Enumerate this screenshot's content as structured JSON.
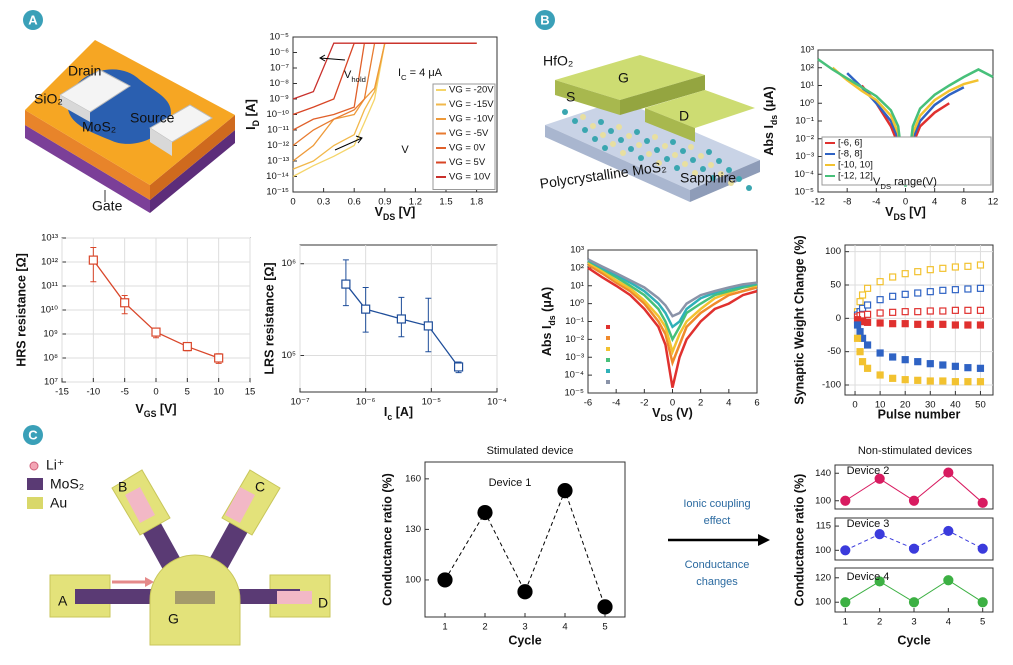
{
  "panels": {
    "a": "A",
    "b": "B",
    "c": "C"
  },
  "diagram_a": {
    "drain": "Drain",
    "sio2": "SiO₂",
    "mos2": "MoS₂",
    "source": "Source",
    "gate": "Gate"
  },
  "diagram_b": {
    "hfo2": "HfO₂",
    "g": "G",
    "s": "S",
    "d": "D",
    "sapphire": "Sapphire",
    "poly": "Polycrystalline MoS₂"
  },
  "diagram_c": {
    "legend": [
      "Li⁺",
      "MoS₂",
      "Au"
    ],
    "electrodes": {
      "a": "A",
      "b": "B",
      "c": "C",
      "d": "D",
      "g": "G"
    },
    "stimulated": "Stimulated device",
    "coupling": [
      "Ionic coupling",
      "effect"
    ],
    "changes": [
      "Conductance",
      "changes"
    ],
    "non_stimulated": "Non-stimulated devices",
    "nonstim_ylabel": "Conductance ratio (%)"
  },
  "chart_data": [
    {
      "type": "line",
      "xlabel": [
        "V",
        "DS",
        " [V]"
      ],
      "ylabel": [
        "I",
        "D",
        " [A]"
      ],
      "log_y": true,
      "xlim": [
        0,
        2
      ],
      "ylim": [
        1e-15,
        1e-05
      ],
      "xticks": [
        0,
        0.3,
        0.6,
        0.9,
        1.2,
        1.5,
        1.8
      ],
      "yticks": [
        {
          "value": 1e-15,
          "label": "10⁻¹⁵"
        },
        {
          "value": 1e-14,
          "label": "10⁻¹⁴"
        },
        {
          "value": 1e-13,
          "label": "10⁻¹³"
        },
        {
          "value": 1e-12,
          "label": "10⁻¹²"
        },
        {
          "value": 1e-11,
          "label": "10⁻¹¹"
        },
        {
          "value": 1e-10,
          "label": "10⁻¹⁰"
        },
        {
          "value": 1e-09,
          "label": "10⁻⁹"
        },
        {
          "value": 1e-08,
          "label": "10⁻⁸"
        },
        {
          "value": 1e-07,
          "label": "10⁻⁷"
        },
        {
          "value": 1e-06,
          "label": "10⁻⁶"
        },
        {
          "value": 1e-05,
          "label": "10⁻⁵"
        }
      ],
      "grid": false,
      "legend": "lower-right",
      "annotations": [
        [
          "V",
          "hold"
        ],
        [
          "I",
          "C",
          " = 4 μA"
        ],
        [
          "V"
        ]
      ],
      "x": [
        0,
        0.2,
        0.4,
        0.6,
        0.7,
        0.8,
        0.9,
        1.2,
        1.5,
        1.8
      ],
      "series": [
        {
          "name": "VG = -20V",
          "color": "#f5d56a",
          "values": [
            1e-14,
            5e-14,
            2e-13,
            1e-12,
            3e-11,
            1e-09,
            4e-06,
            4e-06,
            4e-06,
            4e-06
          ]
        },
        {
          "name": "VG = -15V",
          "color": "#f2b84b",
          "values": [
            3e-14,
            1e-13,
            1e-12,
            5e-12,
            2e-10,
            3e-09,
            4e-06,
            4e-06,
            4e-06,
            4e-06
          ]
        },
        {
          "name": "VG = -10V",
          "color": "#ee9a3a",
          "values": [
            1e-13,
            1e-12,
            5e-11,
            1e-10,
            1e-09,
            5e-09,
            4e-06,
            4e-06,
            4e-06,
            4e-06
          ]
        },
        {
          "name": "VG = -5V",
          "color": "#e87b30",
          "values": [
            1e-12,
            1e-11,
            5e-11,
            2e-10,
            1e-09,
            4e-06,
            4e-06,
            4e-06,
            4e-06,
            4e-06
          ]
        },
        {
          "name": "VG = 0V",
          "color": "#e0602a",
          "values": [
            1e-11,
            5e-11,
            1e-10,
            3e-10,
            4e-06,
            4e-06,
            4e-06,
            4e-06,
            4e-06,
            4e-06
          ]
        },
        {
          "name": "VG = 5V",
          "color": "#d84525",
          "values": [
            1e-10,
            3e-10,
            1e-09,
            4e-06,
            4e-06,
            4e-06,
            4e-06,
            4e-06,
            4e-06,
            4e-06
          ]
        },
        {
          "name": "VG = 10V",
          "color": "#c9302c",
          "values": [
            1e-09,
            3e-09,
            4e-06,
            4e-06,
            4e-06,
            4e-06,
            4e-06,
            4e-06,
            4e-06,
            4e-06
          ]
        }
      ]
    },
    {
      "type": "line",
      "xlabel": [
        "V",
        "DS",
        " [V]"
      ],
      "ylabel": [
        "Abs I",
        "ds",
        " (μA)"
      ],
      "log_y": true,
      "xlim": [
        -12,
        12
      ],
      "ylim": [
        1e-05,
        1000
      ],
      "xticks": [
        -12,
        -8,
        -4,
        0,
        4,
        8,
        12
      ],
      "yticks": [
        {
          "value": 1e-05,
          "label": "10⁻⁵"
        },
        {
          "value": 0.0001,
          "label": "10⁻⁴"
        },
        {
          "value": 0.001,
          "label": "10⁻³"
        },
        {
          "value": 0.01,
          "label": "10⁻²"
        },
        {
          "value": 0.1,
          "label": "10⁻¹"
        },
        {
          "value": 1,
          "label": "10⁰"
        },
        {
          "value": 10,
          "label": "10¹"
        },
        {
          "value": 100,
          "label": "10²"
        },
        {
          "value": 1000,
          "label": "10³"
        }
      ],
      "grid": false,
      "legend": "lower-left",
      "annotations": [
        [
          "V",
          "DS",
          " range(V)"
        ]
      ],
      "x": [
        -12,
        -10,
        -8,
        -6,
        -4,
        -2,
        -1,
        0,
        1,
        2,
        4,
        6,
        8,
        10,
        12
      ],
      "series": [
        {
          "name": "[-6, 6]",
          "color": "#e0312f",
          "values": [
            null,
            null,
            null,
            10,
            1,
            0.05,
            0.005,
            0.001,
            0.005,
            0.05,
            0.3,
            1,
            null,
            null,
            null
          ]
        },
        {
          "name": "[-8, 8]",
          "color": "#2f63c4",
          "values": [
            null,
            null,
            50,
            8,
            1,
            0.1,
            0.01,
            0.0005,
            0.01,
            0.1,
            0.8,
            3,
            8,
            null,
            null
          ]
        },
        {
          "name": "[-10, 10]",
          "color": "#f2c230",
          "values": [
            null,
            100,
            20,
            5,
            1.5,
            0.2,
            0.02,
            0.0001,
            0.02,
            0.2,
            1.5,
            5,
            12,
            20,
            null
          ]
        },
        {
          "name": "[-12, 12]",
          "color": "#47c07a",
          "values": [
            300,
            80,
            25,
            8,
            2.5,
            0.4,
            0.05,
            2e-05,
            0.05,
            0.5,
            3,
            10,
            30,
            80,
            30
          ]
        }
      ]
    },
    {
      "type": "line",
      "xlabel": [
        "V",
        "DS",
        " (V)"
      ],
      "ylabel": [
        "Abs I",
        "ds",
        " (μA)"
      ],
      "log_y": true,
      "xlim": [
        -6,
        6
      ],
      "ylim": [
        1e-05,
        1000
      ],
      "xticks": [
        -6,
        -4,
        -2,
        0,
        2,
        4,
        6
      ],
      "yticks": [
        {
          "value": 1e-05,
          "label": "10⁻⁵"
        },
        {
          "value": 0.0001,
          "label": "10⁻⁴"
        },
        {
          "value": 0.001,
          "label": "10⁻³"
        },
        {
          "value": 0.01,
          "label": "10⁻²"
        },
        {
          "value": 0.1,
          "label": "10⁻¹"
        },
        {
          "value": 1,
          "label": "10⁰"
        },
        {
          "value": 10,
          "label": "10¹"
        },
        {
          "value": 100,
          "label": "10²"
        },
        {
          "value": 1000,
          "label": "10³"
        }
      ],
      "grid": false,
      "legend": "left",
      "x": [
        -6,
        -5,
        -4,
        -3,
        -2,
        -1,
        -0.5,
        0,
        0.5,
        1,
        2,
        3,
        4,
        5,
        6
      ],
      "series": [
        {
          "color": "#e0312f",
          "values": [
            100,
            30,
            10,
            3,
            0.5,
            0.05,
            0.005,
            2e-05,
            0.001,
            0.01,
            0.1,
            0.5,
            1,
            3,
            5
          ]
        },
        {
          "color": "#f08a2c",
          "values": [
            150,
            50,
            15,
            5,
            1,
            0.1,
            0.02,
            0.0005,
            0.005,
            0.05,
            0.3,
            1,
            3,
            5,
            8
          ]
        },
        {
          "color": "#f2c230",
          "values": [
            200,
            70,
            20,
            7,
            1.5,
            0.2,
            0.05,
            0.002,
            0.02,
            0.1,
            0.5,
            2,
            4,
            8,
            10
          ]
        },
        {
          "color": "#47c07a",
          "values": [
            250,
            90,
            30,
            10,
            3,
            0.5,
            0.1,
            0.01,
            0.05,
            0.3,
            1,
            3,
            5,
            8,
            12
          ]
        },
        {
          "color": "#2fb1b8",
          "values": [
            280,
            100,
            40,
            15,
            5,
            1,
            0.3,
            0.05,
            0.1,
            0.5,
            2,
            4,
            7,
            10,
            14
          ]
        },
        {
          "color": "#8a93a8",
          "values": [
            300,
            120,
            50,
            20,
            8,
            2,
            0.8,
            0.2,
            0.3,
            1,
            3,
            5,
            8,
            12,
            15
          ]
        }
      ]
    },
    {
      "type": "line",
      "xlabel": "Pulse number",
      "ylabel": "Synaptic Weight Change (%)",
      "xlim": [
        -4,
        55
      ],
      "ylim": [
        -115,
        110
      ],
      "xticks": [
        0,
        10,
        20,
        30,
        40,
        50
      ],
      "yticks": [
        -100,
        -50,
        0,
        50,
        100
      ],
      "grid": true,
      "x": [
        1,
        2,
        3,
        5,
        10,
        15,
        20,
        25,
        30,
        35,
        40,
        45,
        50
      ],
      "series": [
        {
          "color": "#f2c230",
          "marker": "open-square",
          "values": [
            10,
            25,
            35,
            45,
            55,
            62,
            67,
            70,
            73,
            75,
            77,
            78,
            80
          ]
        },
        {
          "color": "#2f63c4",
          "marker": "open-square",
          "values": [
            5,
            10,
            15,
            20,
            28,
            33,
            36,
            38,
            40,
            42,
            43,
            44,
            45
          ]
        },
        {
          "color": "#e0312f",
          "marker": "open-square",
          "values": [
            2,
            4,
            5,
            6,
            8,
            9,
            10,
            10,
            11,
            11,
            12,
            12,
            12
          ]
        },
        {
          "color": "#e0312f",
          "marker": "square",
          "values": [
            -2,
            -4,
            -5,
            -6,
            -7,
            -8,
            -8,
            -9,
            -9,
            -9,
            -10,
            -10,
            -10
          ]
        },
        {
          "color": "#2f63c4",
          "marker": "square",
          "values": [
            -10,
            -20,
            -30,
            -40,
            -52,
            -58,
            -62,
            -65,
            -68,
            -70,
            -72,
            -74,
            -75
          ]
        },
        {
          "color": "#f2c230",
          "marker": "square",
          "values": [
            -30,
            -50,
            -65,
            -75,
            -85,
            -90,
            -92,
            -93,
            -94,
            -94,
            -95,
            -95,
            -95
          ]
        }
      ]
    },
    {
      "type": "line",
      "xlabel": [
        "V",
        "GS",
        " [V]"
      ],
      "ylabel": "HRS resistance [Ω]",
      "log_y": true,
      "xlim": [
        -15,
        15
      ],
      "ylim": [
        10000000.0,
        10000000000000.0
      ],
      "xticks": [
        -15,
        -10,
        -5,
        0,
        5,
        10,
        15
      ],
      "yticks": [
        {
          "value": 10000000.0,
          "label": "10⁷"
        },
        {
          "value": 100000000.0,
          "label": "10⁸"
        },
        {
          "value": 1000000000.0,
          "label": "10⁹"
        },
        {
          "value": 10000000000.0,
          "label": "10¹⁰"
        },
        {
          "value": 100000000000.0,
          "label": "10¹¹"
        },
        {
          "value": 1000000000000.0,
          "label": "10¹²"
        },
        {
          "value": 10000000000000.0,
          "label": "10¹³"
        }
      ],
      "grid": true,
      "x": [
        -10,
        -5,
        0,
        5,
        10
      ],
      "series": [
        {
          "color": "#d9472b",
          "marker": "open-square",
          "values": [
            1200000000000.0,
            20000000000.0,
            1200000000.0,
            300000000.0,
            100000000.0
          ],
          "ylow": [
            150000000000.0,
            7000000000.0,
            700000000.0,
            200000000.0,
            60000000.0
          ],
          "yhigh": [
            4000000000000.0,
            40000000000.0,
            1600000000.0,
            400000000.0,
            150000000.0
          ]
        }
      ]
    },
    {
      "type": "line",
      "xlabel": [
        "I",
        "c",
        " [A]"
      ],
      "ylabel": "LRS resistance [Ω]",
      "log_x": true,
      "log_y": true,
      "xlim": [
        1e-07,
        0.0001
      ],
      "ylim": [
        40000.0,
        1600000.0
      ],
      "xticks": [
        {
          "value": 1e-07,
          "label": "10⁻⁷"
        },
        {
          "value": 1e-06,
          "label": "10⁻⁶"
        },
        {
          "value": 1e-05,
          "label": "10⁻⁵"
        },
        {
          "value": 0.0001,
          "label": "10⁻⁴"
        }
      ],
      "yticks": [
        {
          "value": 100000.0,
          "label": "10⁵"
        },
        {
          "value": 1000000.0,
          "label": "10⁶"
        }
      ],
      "grid": true,
      "x": [
        5e-07,
        1e-06,
        3.5e-06,
        9e-06,
        2.6e-05
      ],
      "series": [
        {
          "color": "#1f4e9a",
          "marker": "open-square",
          "values": [
            600000.0,
            320000.0,
            250000.0,
            210000.0,
            75000.0
          ],
          "ylow": [
            350000.0,
            180000.0,
            160000.0,
            110000.0,
            65000.0
          ],
          "yhigh": [
            1100000.0,
            550000.0,
            430000.0,
            420000.0,
            85000.0
          ]
        }
      ]
    },
    {
      "type": "line",
      "xlabel": "Cycle",
      "ylabel": "Conductance ratio (%)",
      "xlim": [
        0.5,
        5.5
      ],
      "ylim": [
        78,
        170
      ],
      "xticks": [
        1,
        2,
        3,
        4,
        5
      ],
      "yticks": [
        100,
        130,
        160
      ],
      "grid": false,
      "annotations": [
        [
          "Device 1"
        ]
      ],
      "x": [
        1,
        2,
        3,
        4,
        5
      ],
      "series": [
        {
          "color": "#000000",
          "marker": "circle",
          "line": "dashed",
          "values": [
            100,
            140,
            93,
            153,
            84
          ]
        }
      ]
    },
    {
      "type": "line",
      "xlim": [
        0.7,
        5.3
      ],
      "ylim": [
        88,
        152
      ],
      "yticks": [
        100,
        140
      ],
      "grid": false,
      "annotations": [
        [
          "Device 2"
        ]
      ],
      "x": [
        1,
        2,
        3,
        4,
        5
      ],
      "series": [
        {
          "color": "#d81b60",
          "marker": "circle",
          "line": "solid",
          "values": [
            100,
            132,
            100,
            141,
            97
          ]
        }
      ]
    },
    {
      "type": "line",
      "xlim": [
        0.7,
        5.3
      ],
      "ylim": [
        94,
        120
      ],
      "yticks": [
        100,
        115
      ],
      "grid": false,
      "annotations": [
        [
          "Device 3"
        ]
      ],
      "x": [
        1,
        2,
        3,
        4,
        5
      ],
      "series": [
        {
          "color": "#3b3bdc",
          "marker": "circle",
          "line": "dashed",
          "values": [
            100,
            110,
            101,
            112,
            101
          ]
        }
      ]
    },
    {
      "type": "line",
      "xlabel": "Cycle",
      "xlim": [
        0.7,
        5.3
      ],
      "ylim": [
        92,
        128
      ],
      "xticks": [
        1,
        2,
        3,
        4,
        5
      ],
      "yticks": [
        100,
        120
      ],
      "grid": false,
      "annotations": [
        [
          "Device 4"
        ]
      ],
      "x": [
        1,
        2,
        3,
        4,
        5
      ],
      "series": [
        {
          "color": "#3cb043",
          "marker": "circle",
          "line": "solid",
          "values": [
            100,
            117,
            100,
            118,
            100
          ]
        }
      ]
    }
  ]
}
